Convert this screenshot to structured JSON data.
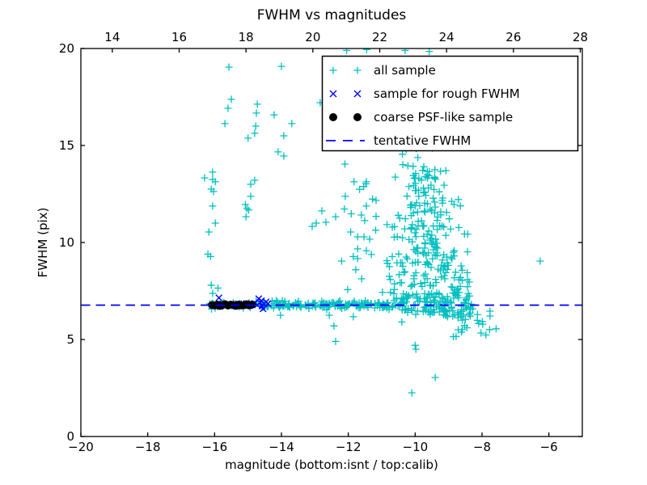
{
  "figure": {
    "background": "#ffffff",
    "frame_color": "#000000"
  },
  "chart_data": {
    "type": "scatter",
    "title": "FWHM vs magnitudes",
    "xlabel": "magnitude (bottom:isnt / top:calib)",
    "ylabel": "FWHM (pix)",
    "grid": false,
    "x_bottom": {
      "range": [
        -20,
        -5
      ],
      "ticks": [
        -20,
        -18,
        -16,
        -14,
        -12,
        -10,
        -8,
        -6
      ],
      "labels": [
        "−20",
        "−18",
        "−16",
        "−14",
        "−12",
        "−10",
        "−8",
        "−6"
      ]
    },
    "x_top": {
      "range": [
        13.06,
        28.06
      ],
      "ticks": [
        14,
        16,
        18,
        20,
        22,
        24,
        26,
        28
      ],
      "labels": [
        "14",
        "16",
        "18",
        "20",
        "22",
        "24",
        "26",
        "28"
      ]
    },
    "y": {
      "range": [
        0,
        20
      ],
      "ticks": [
        0,
        5,
        10,
        15,
        20
      ],
      "labels": [
        "0",
        "5",
        "10",
        "15",
        "20"
      ]
    },
    "tentative_fwhm": 6.77,
    "colors": {
      "all_sample": "#00bfbf",
      "rough_fwhm": "#0000ff",
      "psf_sample": "#000000",
      "tentative_line": "#0000ff"
    },
    "seed": 42,
    "series": [
      {
        "id": "all_sample",
        "label": "all sample",
        "marker": "plus",
        "color": "#00bfbf",
        "points": [
          [
            -15.57,
            19.04
          ],
          [
            -14.0,
            19.08
          ],
          [
            -15.5,
            17.38
          ],
          [
            -15.6,
            16.92
          ],
          [
            -14.72,
            17.13
          ],
          [
            -14.75,
            16.67
          ],
          [
            -14.22,
            16.58
          ],
          [
            -15.69,
            16.13
          ],
          [
            -13.69,
            16.13
          ],
          [
            -14.77,
            16.0
          ],
          [
            -14.8,
            15.63
          ],
          [
            -15.0,
            15.38
          ],
          [
            -13.93,
            15.5
          ],
          [
            -14.1,
            14.67
          ],
          [
            -13.93,
            14.46
          ],
          [
            -12.84,
            17.21
          ],
          [
            -16.3,
            13.33
          ],
          [
            -16.06,
            13.63
          ],
          [
            -16.06,
            13.25
          ],
          [
            -15.98,
            13.13
          ],
          [
            -16.1,
            12.75
          ],
          [
            -16.03,
            12.63
          ],
          [
            -16.06,
            11.88
          ],
          [
            -15.98,
            11.0
          ],
          [
            -16.17,
            10.54
          ],
          [
            -16.2,
            9.4
          ],
          [
            -16.12,
            9.28
          ],
          [
            -16.1,
            7.8
          ],
          [
            -15.9,
            7.65
          ],
          [
            -16.06,
            7.38
          ],
          [
            -14.8,
            13.21
          ],
          [
            -14.92,
            13.0
          ],
          [
            -14.92,
            12.38
          ],
          [
            -15.08,
            11.96
          ],
          [
            -15.03,
            11.75
          ],
          [
            -14.98,
            11.67
          ],
          [
            -15.06,
            11.33
          ],
          [
            -12.79,
            11.63
          ],
          [
            -13.08,
            10.83
          ],
          [
            -12.96,
            11.0
          ],
          [
            -12.67,
            11.04
          ],
          [
            -12.1,
            14.04
          ],
          [
            -11.83,
            13.13
          ],
          [
            -11.46,
            13.13
          ],
          [
            -12.09,
            12.38
          ],
          [
            -11.46,
            11.88
          ],
          [
            -11.17,
            12.17
          ],
          [
            -11.51,
            11.13
          ],
          [
            -12.38,
            11.33
          ],
          [
            -11.93,
            10.54
          ],
          [
            -11.72,
            10.29
          ],
          [
            -11.53,
            10.29
          ],
          [
            -11.36,
            10.17
          ],
          [
            -11.72,
            9.67
          ],
          [
            -11.46,
            9.58
          ],
          [
            -11.31,
            9.38
          ],
          [
            -11.72,
            9.17
          ],
          [
            -12.2,
            9.04
          ],
          [
            -11.6,
            8.13
          ],
          [
            -10.84,
            10.92
          ],
          [
            -10.46,
            11.25
          ],
          [
            -14.03,
            6.25
          ],
          [
            -12.57,
            6.25
          ],
          [
            -11.85,
            6.17
          ],
          [
            -12.43,
            5.7
          ],
          [
            -12.38,
            4.9
          ],
          [
            -10.0,
            4.7
          ],
          [
            -9.98,
            4.5
          ],
          [
            -9.4,
            3.04
          ],
          [
            -10.1,
            2.25
          ],
          [
            -6.26,
            9.04
          ],
          [
            -12.05,
            19.9
          ],
          [
            -11.45,
            19.95
          ],
          [
            -10.3,
            19.9
          ],
          [
            -9.58,
            19.85
          ]
        ],
        "clusters": [
          {
            "n": 30,
            "x": {
              "dist": "uniform",
              "min": -16.15,
              "max": -14.65
            },
            "y": {
              "dist": "normal",
              "mean": 6.78,
              "sigma": 0.09,
              "min": 6.5,
              "max": 7.1
            }
          },
          {
            "n": 150,
            "x": {
              "dist": "uniform",
              "min": -14.65,
              "max": -10.4
            },
            "y": {
              "dist": "normal",
              "mean": 6.78,
              "sigma": 0.1,
              "min": 6.4,
              "max": 7.2
            }
          },
          {
            "n": 110,
            "x": {
              "dist": "uniform",
              "min": -10.4,
              "max": -8.3
            },
            "y": {
              "dist": "normal",
              "mean": 6.72,
              "sigma": 0.32,
              "min": 5.6,
              "max": 7.6
            }
          },
          {
            "n": 26,
            "x": {
              "dist": "uniform",
              "min": -9.2,
              "max": -7.55
            },
            "y": {
              "dist": "uniform",
              "min": 5.1,
              "max": 6.6
            }
          },
          {
            "n": 70,
            "x": {
              "dist": "uniform",
              "min": -11.1,
              "max": -8.35
            },
            "y": {
              "dist": "uniform",
              "min": 7.0,
              "max": 8.5
            }
          },
          {
            "n": 80,
            "x": {
              "dist": "normal",
              "mean": -9.55,
              "sigma": 0.6,
              "min": -11.0,
              "max": -8.4
            },
            "y": {
              "dist": "uniform",
              "min": 8.5,
              "max": 10.5
            }
          },
          {
            "n": 60,
            "x": {
              "dist": "normal",
              "mean": -9.75,
              "sigma": 0.5,
              "min": -10.9,
              "max": -8.55
            },
            "y": {
              "dist": "uniform",
              "min": 10.5,
              "max": 12.5
            }
          },
          {
            "n": 35,
            "x": {
              "dist": "normal",
              "mean": -9.8,
              "sigma": 0.35,
              "min": -10.6,
              "max": -8.8
            },
            "y": {
              "dist": "uniform",
              "min": 12.5,
              "max": 13.8
            }
          },
          {
            "n": 20,
            "x": {
              "dist": "normal",
              "mean": -9.9,
              "sigma": 0.3,
              "min": -10.6,
              "max": -9.2
            },
            "y": {
              "dist": "uniform",
              "min": 13.8,
              "max": 16.0
            }
          },
          {
            "n": 12,
            "x": {
              "dist": "uniform",
              "min": -12.4,
              "max": -10.9
            },
            "y": {
              "dist": "uniform",
              "min": 7.3,
              "max": 13.5
            }
          }
        ]
      },
      {
        "id": "rough_fwhm",
        "label": "sample for rough FWHM",
        "marker": "x",
        "color": "#0000ff",
        "points": [
          [
            -16.0,
            6.8
          ],
          [
            -15.92,
            6.74
          ],
          [
            -15.87,
            7.15
          ],
          [
            -15.84,
            6.7
          ],
          [
            -15.76,
            6.84
          ],
          [
            -15.68,
            6.76
          ],
          [
            -15.6,
            6.82
          ],
          [
            -15.52,
            6.72
          ],
          [
            -15.44,
            6.8
          ],
          [
            -15.36,
            6.76
          ],
          [
            -15.28,
            6.84
          ],
          [
            -15.2,
            6.72
          ],
          [
            -15.12,
            6.8
          ],
          [
            -15.04,
            6.86
          ],
          [
            -14.96,
            6.74
          ],
          [
            -14.88,
            6.8
          ],
          [
            -14.8,
            6.86
          ],
          [
            -14.72,
            6.78
          ],
          [
            -14.68,
            7.1
          ],
          [
            -14.64,
            6.9
          ],
          [
            -14.58,
            6.72
          ],
          [
            -14.6,
            7.0
          ],
          [
            -14.52,
            6.84
          ],
          [
            -14.46,
            6.94
          ],
          [
            -14.55,
            6.58
          ],
          [
            -14.4,
            6.85
          ]
        ],
        "clusters": []
      },
      {
        "id": "psf_sample",
        "label": "coarse PSF-like sample",
        "marker": "dot",
        "color": "#000000",
        "points": [
          [
            -16.08,
            6.78
          ],
          [
            -16.0,
            6.76
          ],
          [
            -15.92,
            6.8
          ],
          [
            -15.84,
            6.73
          ],
          [
            -15.76,
            6.78
          ],
          [
            -15.68,
            6.82
          ],
          [
            -15.6,
            6.75
          ],
          [
            -15.52,
            6.8
          ],
          [
            -15.44,
            6.78
          ],
          [
            -15.36,
            6.73
          ],
          [
            -15.28,
            6.8
          ],
          [
            -15.2,
            6.76
          ],
          [
            -15.12,
            6.78
          ],
          [
            -15.04,
            6.82
          ],
          [
            -14.96,
            6.76
          ],
          [
            -14.88,
            6.8
          ]
        ],
        "clusters": []
      },
      {
        "id": "tentative",
        "label": "tentative FWHM",
        "marker": "dashed-line",
        "color": "#0000ff",
        "y_value": 6.77
      }
    ],
    "legend": {
      "position": "upper right",
      "entries": [
        "all sample",
        "sample for rough FWHM",
        "coarse PSF-like sample",
        "tentative FWHM"
      ]
    }
  }
}
